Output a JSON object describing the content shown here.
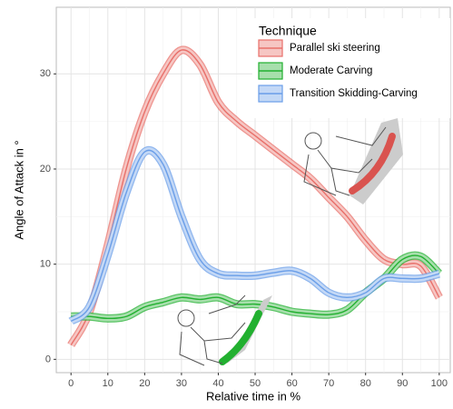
{
  "chart_data": {
    "type": "line",
    "x_label": "Relative time in %",
    "y_label": "Angle of Attack in °",
    "legend_title": "Technique",
    "legend_position": "top-right",
    "grid": true,
    "xlim": [
      -4,
      103
    ],
    "ylim": [
      -1.4,
      37
    ],
    "xticks": [
      0,
      10,
      20,
      30,
      40,
      50,
      60,
      70,
      80,
      90,
      100
    ],
    "yticks": [
      0,
      10,
      20,
      30
    ],
    "x": [
      0,
      5,
      10,
      15,
      20,
      25,
      30,
      35,
      40,
      45,
      50,
      55,
      60,
      65,
      70,
      75,
      80,
      85,
      90,
      95,
      100
    ],
    "series": [
      {
        "name": "Parallel ski steering",
        "color": "#e8706a",
        "values": [
          1.5,
          5,
          12,
          20,
          26,
          30,
          32.5,
          31,
          27,
          25,
          23.5,
          22,
          20.5,
          19,
          17,
          15,
          12.5,
          10.5,
          10,
          9.8,
          6.5
        ]
      },
      {
        "name": "Moderate Carving",
        "color": "#22b030",
        "values": [
          4.5,
          4.5,
          4.3,
          4.5,
          5.5,
          6,
          6.5,
          6.3,
          6.5,
          5.8,
          5.8,
          5.5,
          5,
          4.8,
          4.7,
          5.2,
          7,
          8.5,
          10.5,
          10.8,
          9
        ]
      },
      {
        "name": "Transition Skidding-Carving",
        "color": "#6a9ee8",
        "values": [
          4,
          5.5,
          11,
          17.5,
          21.8,
          20.5,
          15,
          10.5,
          9,
          8.8,
          8.8,
          9.1,
          9.3,
          8.5,
          7,
          6.5,
          7,
          8.5,
          8.5,
          8.5,
          9
        ]
      }
    ]
  }
}
